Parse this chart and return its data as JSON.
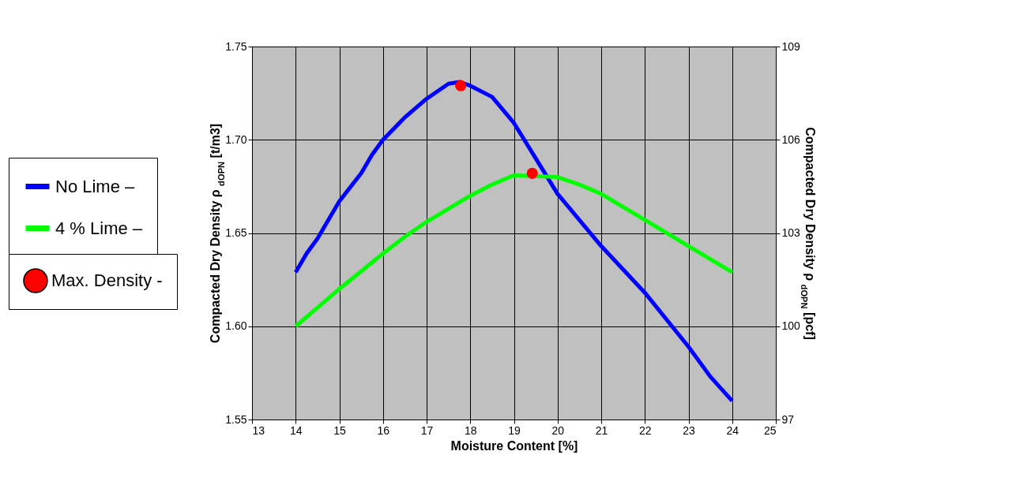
{
  "chart_data": {
    "type": "line",
    "xlabel": "Moisture Content [%]",
    "ylabel": "Compacted Dry Density ρ $_{dOPN}$ [t/m3]",
    "y2label": "Compacted Dry Density ρ $_{dOPN}$ [pcf]",
    "xlim": [
      13,
      25
    ],
    "xticks": [
      13,
      14,
      15,
      16,
      17,
      18,
      19,
      20,
      21,
      22,
      23,
      24,
      25
    ],
    "ylim": [
      1.55,
      1.75
    ],
    "yticks": [
      1.55,
      {
        "value": 1.6,
        "label": "1.60"
      },
      1.65,
      {
        "value": 1.7,
        "label": "1.70"
      },
      1.75
    ],
    "y2lim": [
      97,
      109
    ],
    "y2ticks": [
      97,
      100,
      103,
      106,
      109
    ],
    "grid": true,
    "legend": "left",
    "line_style": "solid",
    "series": [
      {
        "name": "No Lime –",
        "color": "#0000ff",
        "x": [
          14,
          14.25,
          14.5,
          15,
          15.5,
          15.75,
          16,
          16.5,
          17,
          17.5,
          17.75,
          18,
          18.5,
          19,
          19.5,
          20,
          21,
          22,
          23,
          23.5,
          24
        ],
        "values": [
          1.629,
          1.639,
          1.647,
          1.667,
          1.682,
          1.692,
          1.7,
          1.712,
          1.722,
          1.73,
          1.731,
          1.729,
          1.723,
          1.709,
          1.69,
          1.671,
          1.643,
          1.618,
          1.589,
          1.573,
          1.56
        ]
      },
      {
        "name": "4 % Lime –",
        "color": "#00ff00",
        "x": [
          14,
          14.5,
          15,
          16,
          16.5,
          17,
          18,
          18.5,
          19,
          20,
          20.5,
          21,
          22,
          23,
          24
        ],
        "values": [
          1.6,
          1.61,
          1.62,
          1.639,
          1.648,
          1.656,
          1.67,
          1.676,
          1.681,
          1.68,
          1.676,
          1.671,
          1.657,
          1.643,
          1.629
        ]
      },
      {
        "name": "Max. Density -",
        "type": "scatter",
        "color": "#ff0000",
        "x": [
          17.78,
          19.42
        ],
        "values": [
          1.729,
          1.682
        ]
      }
    ]
  }
}
